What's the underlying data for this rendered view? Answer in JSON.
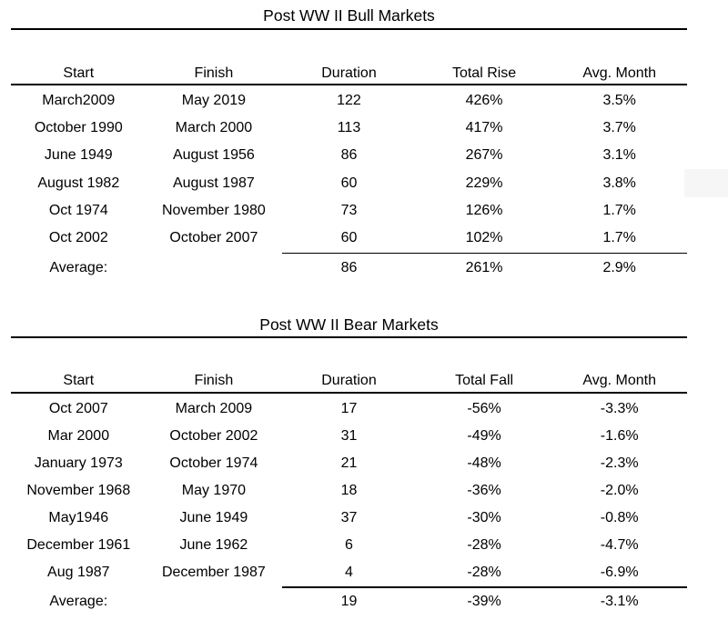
{
  "chart_data": [
    {
      "type": "table",
      "title": "Post WW II Bull Markets",
      "columns": [
        "Start",
        "Finish",
        "Duration",
        "Total Rise",
        "Avg. Month"
      ],
      "rows": [
        [
          "March2009",
          "May 2019",
          "122",
          "426%",
          "3.5%"
        ],
        [
          "October 1990",
          "March 2000",
          "113",
          "417%",
          "3.7%"
        ],
        [
          "June 1949",
          "August 1956",
          "86",
          "267%",
          "3.1%"
        ],
        [
          "August 1982",
          "August 1987",
          "60",
          "229%",
          "3.8%"
        ],
        [
          "Oct 1974",
          "November 1980",
          "73",
          "126%",
          "1.7%"
        ],
        [
          "Oct 2002",
          "October 2007",
          "60",
          "102%",
          "1.7%"
        ]
      ],
      "average_row": [
        "Average:",
        "",
        "86",
        "261%",
        "2.9%"
      ]
    },
    {
      "type": "table",
      "title": "Post WW II Bear Markets",
      "columns": [
        "Start",
        "Finish",
        "Duration",
        "Total Fall",
        "Avg. Month"
      ],
      "rows": [
        [
          "Oct 2007",
          "March 2009",
          "17",
          "-56%",
          "-3.3%"
        ],
        [
          "Mar 2000",
          "October 2002",
          "31",
          "-49%",
          "-1.6%"
        ],
        [
          "January 1973",
          "October 1974",
          "21",
          "-48%",
          "-2.3%"
        ],
        [
          "November 1968",
          "May 1970",
          "18",
          "-36%",
          "-2.0%"
        ],
        [
          "May1946",
          "June 1949",
          "37",
          "-30%",
          "-0.8%"
        ],
        [
          "December 1961",
          "June 1962",
          "6",
          "-28%",
          "-4.7%"
        ],
        [
          "Aug 1987",
          "December 1987",
          "4",
          "-28%",
          "-6.9%"
        ]
      ],
      "average_row": [
        "Average:",
        "",
        "19",
        "-39%",
        "-3.1%"
      ]
    }
  ],
  "colors": {
    "text": "#000000",
    "background": "#ffffff",
    "rule": "#000000",
    "artifact_gray": "#f6f6f6"
  }
}
